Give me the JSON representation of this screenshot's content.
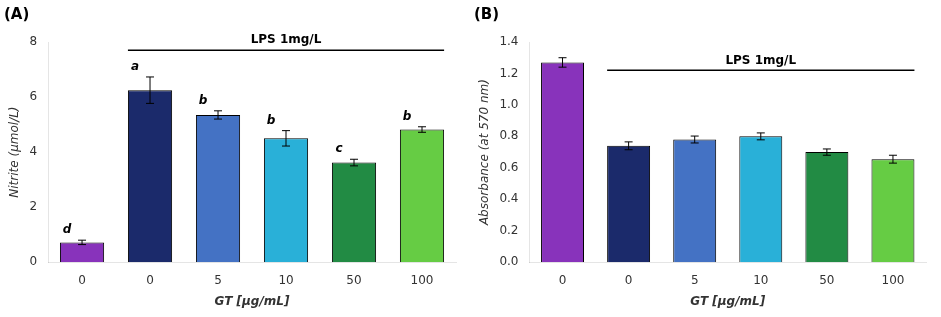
{
  "chart_data": [
    {
      "type": "bar",
      "title": "(A)",
      "categories": [
        "0",
        "0",
        "5",
        "10",
        "50",
        "100"
      ],
      "values": [
        0.72,
        6.25,
        5.35,
        4.5,
        3.62,
        4.82
      ],
      "errors": [
        0.08,
        0.48,
        0.15,
        0.28,
        0.12,
        0.1
      ],
      "colors": [
        "#8833BB",
        "#1B2A6B",
        "#4472C4",
        "#29B0D8",
        "#228B44",
        "#66CC44"
      ],
      "bar_labels": [
        "d",
        "a",
        "b",
        "b",
        "c",
        "b"
      ],
      "xlabel": "GT [μg/mL]",
      "ylabel": "Nitrite (μmol/L)",
      "ylim": [
        0,
        8
      ],
      "yticks": [
        0,
        2,
        4,
        6,
        8
      ],
      "grid": false,
      "annotations": [
        {
          "text": "LPS 1mg/L",
          "y": 7.85,
          "line_y": 7.7,
          "from": 1,
          "to": 5
        }
      ]
    },
    {
      "type": "bar",
      "title": "(B)",
      "categories": [
        "0",
        "0",
        "5",
        "10",
        "50",
        "100"
      ],
      "values": [
        1.27,
        0.74,
        0.78,
        0.8,
        0.7,
        0.655
      ],
      "errors": [
        0.03,
        0.025,
        0.022,
        0.022,
        0.02,
        0.025
      ],
      "colors": [
        "#8833BB",
        "#1B2A6B",
        "#4472C4",
        "#29B0D8",
        "#228B44",
        "#66CC44"
      ],
      "xlabel": "GT [μg/mL]",
      "ylabel": "Absorbance (at 570 nm)",
      "ylim": [
        0,
        1.4
      ],
      "yticks": [
        {
          "value": 0,
          "label": "0.0"
        },
        0.2,
        0.4,
        0.6,
        0.8,
        {
          "value": 1.0,
          "label": "1.0"
        },
        1.2,
        1.4
      ],
      "grid": false,
      "annotations": [
        {
          "text": "LPS 1mg/L",
          "y": 1.24,
          "line_y": 1.22,
          "from": 1,
          "to": 5
        }
      ]
    }
  ]
}
